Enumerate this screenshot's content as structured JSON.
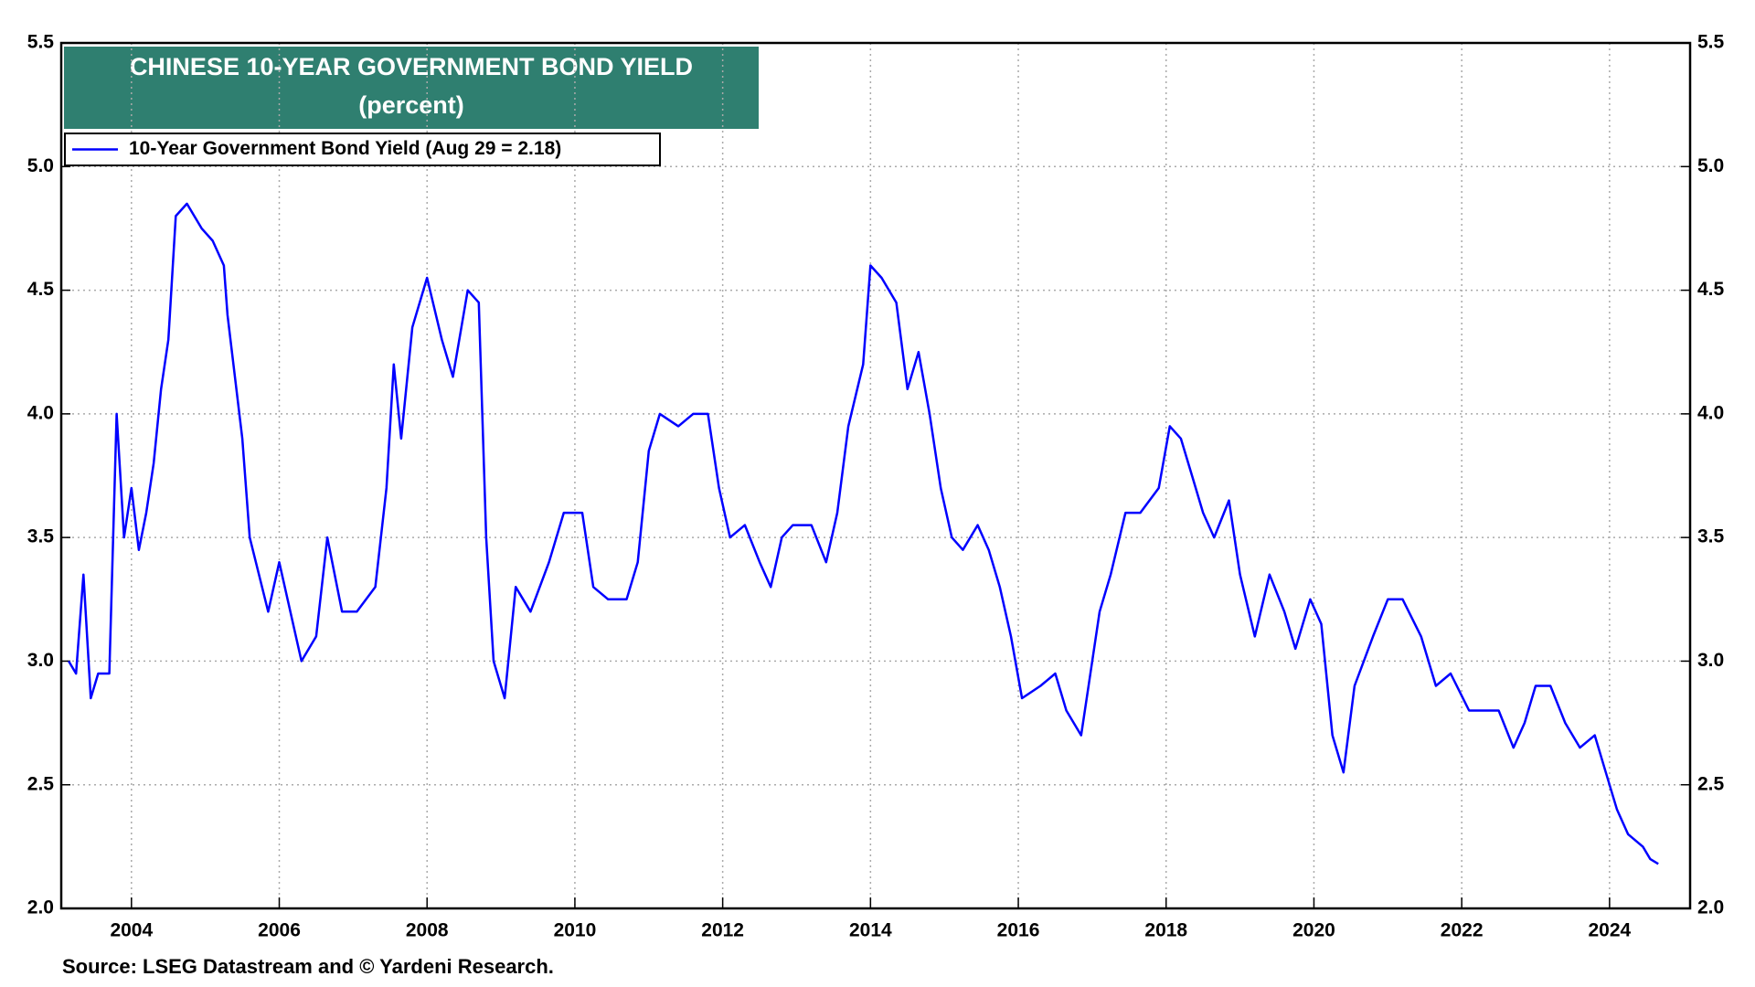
{
  "chart_data": {
    "type": "line",
    "title": "CHINESE 10-YEAR GOVERNMENT BOND YIELD",
    "subtitle": "(percent)",
    "source": "Source: LSEG Datastream and © Yardeni Research.",
    "xlim": [
      2003.05,
      2025.09
    ],
    "xticks": [
      2004,
      2006,
      2008,
      2010,
      2012,
      2014,
      2016,
      2018,
      2020,
      2022,
      2024
    ],
    "ylim": [
      2.0,
      5.5
    ],
    "yticks": [
      {
        "value": 2.0,
        "label": "2.0"
      },
      2.5,
      {
        "value": 3.0,
        "label": "3.0"
      },
      3.5,
      {
        "value": 4.0,
        "label": "4.0"
      },
      4.5,
      {
        "value": 5.0,
        "label": "5.0"
      },
      5.5
    ],
    "grid": true,
    "legend": "top-left",
    "series": [
      {
        "name": "10-Year Government Bond Yield (Aug 29 = 2.18)",
        "color": "#0000ff",
        "x": [
          2003.15,
          2003.25,
          2003.35,
          2003.45,
          2003.55,
          2003.7,
          2003.8,
          2003.9,
          2004.0,
          2004.1,
          2004.2,
          2004.3,
          2004.4,
          2004.5,
          2004.6,
          2004.75,
          2004.95,
          2005.1,
          2005.25,
          2005.3,
          2005.5,
          2005.6,
          2005.85,
          2006.0,
          2006.3,
          2006.5,
          2006.65,
          2006.85,
          2007.05,
          2007.3,
          2007.45,
          2007.55,
          2007.65,
          2007.8,
          2008.0,
          2008.2,
          2008.35,
          2008.55,
          2008.7,
          2008.8,
          2008.9,
          2009.05,
          2009.2,
          2009.4,
          2009.65,
          2009.85,
          2010.1,
          2010.25,
          2010.45,
          2010.7,
          2010.85,
          2011.0,
          2011.15,
          2011.4,
          2011.6,
          2011.8,
          2011.95,
          2012.1,
          2012.3,
          2012.5,
          2012.65,
          2012.8,
          2012.95,
          2013.2,
          2013.4,
          2013.55,
          2013.7,
          2013.9,
          2014.0,
          2014.15,
          2014.35,
          2014.5,
          2014.65,
          2014.8,
          2014.95,
          2015.1,
          2015.25,
          2015.45,
          2015.6,
          2015.75,
          2015.9,
          2016.05,
          2016.3,
          2016.5,
          2016.65,
          2016.85,
          2016.95,
          2017.1,
          2017.25,
          2017.45,
          2017.65,
          2017.9,
          2018.05,
          2018.2,
          2018.35,
          2018.5,
          2018.65,
          2018.85,
          2019.0,
          2019.2,
          2019.4,
          2019.6,
          2019.75,
          2019.95,
          2020.1,
          2020.25,
          2020.4,
          2020.55,
          2020.8,
          2021.0,
          2021.2,
          2021.45,
          2021.65,
          2021.85,
          2022.1,
          2022.3,
          2022.5,
          2022.7,
          2022.85,
          2023.0,
          2023.2,
          2023.4,
          2023.6,
          2023.8,
          2023.95,
          2024.1,
          2024.25,
          2024.45,
          2024.55,
          2024.66
        ],
        "values": [
          3.0,
          2.95,
          3.35,
          2.85,
          2.95,
          2.95,
          4.0,
          3.5,
          3.7,
          3.45,
          3.6,
          3.8,
          4.1,
          4.3,
          4.8,
          4.85,
          4.75,
          4.7,
          4.6,
          4.4,
          3.9,
          3.5,
          3.2,
          3.4,
          3.0,
          3.1,
          3.5,
          3.2,
          3.2,
          3.3,
          3.7,
          4.2,
          3.9,
          4.35,
          4.55,
          4.3,
          4.15,
          4.5,
          4.45,
          3.5,
          3.0,
          2.85,
          3.3,
          3.2,
          3.4,
          3.6,
          3.6,
          3.3,
          3.25,
          3.25,
          3.4,
          3.85,
          4.0,
          3.95,
          4.0,
          4.0,
          3.7,
          3.5,
          3.55,
          3.4,
          3.3,
          3.5,
          3.55,
          3.55,
          3.4,
          3.6,
          3.95,
          4.2,
          4.6,
          4.55,
          4.45,
          4.1,
          4.25,
          4.0,
          3.7,
          3.5,
          3.45,
          3.55,
          3.45,
          3.3,
          3.1,
          2.85,
          2.9,
          2.95,
          2.8,
          2.7,
          2.9,
          3.2,
          3.35,
          3.6,
          3.6,
          3.7,
          3.95,
          3.9,
          3.75,
          3.6,
          3.5,
          3.65,
          3.35,
          3.1,
          3.35,
          3.2,
          3.05,
          3.25,
          3.15,
          2.7,
          2.55,
          2.9,
          3.1,
          3.25,
          3.25,
          3.1,
          2.9,
          2.95,
          2.8,
          2.8,
          2.8,
          2.65,
          2.75,
          2.9,
          2.9,
          2.75,
          2.65,
          2.7,
          2.55,
          2.4,
          2.3,
          2.25,
          2.2,
          2.18
        ]
      }
    ]
  }
}
